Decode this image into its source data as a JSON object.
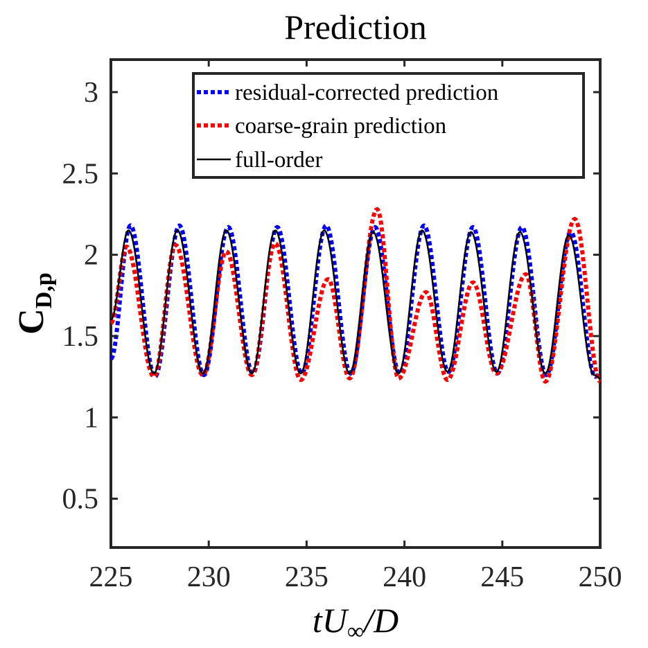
{
  "chart_data": {
    "type": "line",
    "title": "Prediction",
    "xlabel": "tU∞/D",
    "ylabel": "C_D,p",
    "xlim": [
      225,
      250
    ],
    "ylim": [
      0.2,
      3.2
    ],
    "xticks": [
      225,
      230,
      235,
      240,
      245,
      250
    ],
    "yticks": [
      0.5,
      1,
      1.5,
      2,
      2.5,
      3
    ],
    "legend_position": "top-right",
    "grid": false,
    "series": [
      {
        "name": "residual-corrected prediction",
        "color": "#0000ff",
        "style": "dotted",
        "minima_x": [
          227.25,
          229.75,
          232.25,
          234.75,
          237.25,
          239.75,
          242.25,
          244.75,
          247.25,
          249.75
        ],
        "minima_y": [
          1.25,
          1.26,
          1.27,
          1.27,
          1.27,
          1.27,
          1.28,
          1.27,
          1.26,
          1.25
        ],
        "maxima_x": [
          226.0,
          228.5,
          231.0,
          233.5,
          236.0,
          238.5,
          241.0,
          243.5,
          246.0,
          248.5
        ],
        "maxima_y": [
          2.18,
          2.18,
          2.17,
          2.17,
          2.18,
          2.17,
          2.18,
          2.17,
          2.17,
          2.14
        ],
        "start": [
          225,
          1.36
        ],
        "end": [
          250,
          1.27
        ]
      },
      {
        "name": "coarse-grain prediction",
        "color": "#ff0000",
        "style": "dotted",
        "minima_x": [
          227.2,
          229.7,
          232.2,
          234.7,
          237.2,
          239.7,
          242.2,
          244.7,
          247.2,
          250.0
        ],
        "minima_y": [
          1.25,
          1.26,
          1.26,
          1.23,
          1.24,
          1.24,
          1.23,
          1.27,
          1.22,
          1.22
        ],
        "maxima_x": [
          225.8,
          228.3,
          230.9,
          233.4,
          236.1,
          238.6,
          241.1,
          243.5,
          246.2,
          248.7
        ],
        "maxima_y": [
          2.05,
          2.06,
          2.02,
          2.07,
          1.85,
          2.28,
          1.77,
          1.83,
          1.88,
          2.22
        ],
        "start": [
          225,
          1.58
        ],
        "end": [
          250,
          1.22
        ]
      },
      {
        "name": "full-order",
        "color": "#000000",
        "style": "solid",
        "minima_x": [
          227.2,
          229.7,
          232.2,
          234.7,
          237.2,
          239.7,
          242.2,
          244.7,
          247.2,
          249.7
        ],
        "minima_y": [
          1.27,
          1.27,
          1.27,
          1.27,
          1.27,
          1.27,
          1.28,
          1.28,
          1.27,
          1.26
        ],
        "maxima_x": [
          225.9,
          228.4,
          230.9,
          233.4,
          235.9,
          238.4,
          240.9,
          243.4,
          245.9,
          248.4
        ],
        "maxima_y": [
          2.15,
          2.15,
          2.15,
          2.15,
          2.15,
          2.14,
          2.15,
          2.14,
          2.14,
          2.12
        ],
        "start": [
          225,
          1.6
        ],
        "end": [
          250,
          1.24
        ]
      }
    ]
  },
  "labels": {
    "title": "Prediction",
    "ylabel_main": "C",
    "ylabel_sub": "D,p",
    "xlabel_t": "tU",
    "xlabel_inf": "∞",
    "xlabel_rest": "/D"
  }
}
